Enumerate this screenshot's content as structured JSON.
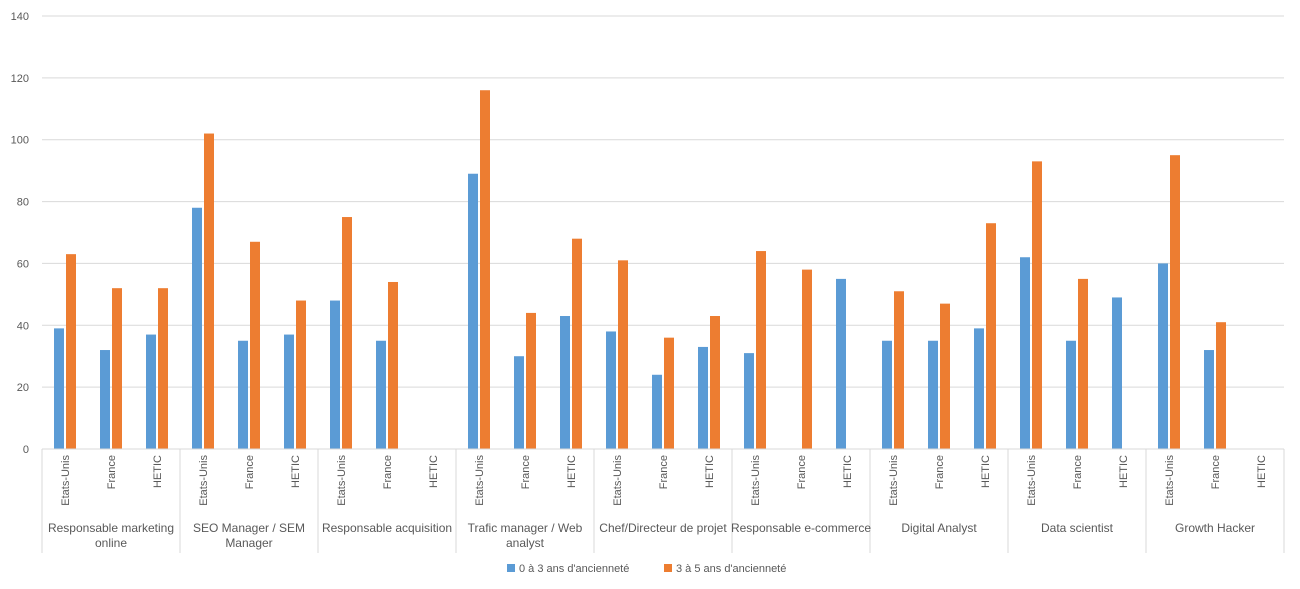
{
  "chart_data": {
    "type": "bar",
    "ylim": [
      0,
      140
    ],
    "yticks": [
      0,
      20,
      40,
      60,
      80,
      100,
      120,
      140
    ],
    "grid": true,
    "legend_position": "bottom",
    "groups": [
      {
        "label": [
          "Responsable marketing",
          "online"
        ],
        "categories": [
          "Etats-Unis",
          "France",
          "HETIC"
        ]
      },
      {
        "label": [
          "SEO Manager / SEM",
          "Manager"
        ],
        "categories": [
          "Etats-Unis",
          "France",
          "HETIC"
        ]
      },
      {
        "label": [
          "Responsable acquisition"
        ],
        "categories": [
          "Etats-Unis",
          "France",
          "HETIC"
        ]
      },
      {
        "label": [
          "Trafic manager / Web",
          "analyst"
        ],
        "categories": [
          "Etats-Unis",
          "France",
          "HETIC"
        ]
      },
      {
        "label": [
          "Chef/Directeur de projet"
        ],
        "categories": [
          "Etats-Unis",
          "France",
          "HETIC"
        ]
      },
      {
        "label": [
          "Responsable e-commerce"
        ],
        "categories": [
          "Etats-Unis",
          "France",
          "HETIC"
        ]
      },
      {
        "label": [
          "Digital Analyst"
        ],
        "categories": [
          "Etats-Unis",
          "France",
          "HETIC"
        ]
      },
      {
        "label": [
          "Data scientist"
        ],
        "categories": [
          "Etats-Unis",
          "France",
          "HETIC"
        ]
      },
      {
        "label": [
          "Growth Hacker"
        ],
        "categories": [
          "Etats-Unis",
          "France",
          "HETIC"
        ]
      }
    ],
    "series": [
      {
        "name": "0 à 3 ans d'ancienneté",
        "color": "#5b9bd5",
        "values": [
          39,
          32,
          37,
          78,
          35,
          37,
          48,
          35,
          null,
          89,
          30,
          43,
          38,
          24,
          33,
          31,
          null,
          55,
          35,
          35,
          39,
          62,
          35,
          49,
          60,
          32,
          null
        ]
      },
      {
        "name": "3 à 5 ans d'ancienneté",
        "color": "#ed7d31",
        "values": [
          63,
          52,
          52,
          102,
          67,
          48,
          75,
          54,
          null,
          116,
          44,
          68,
          61,
          36,
          43,
          64,
          58,
          null,
          51,
          47,
          73,
          93,
          55,
          null,
          95,
          41,
          null
        ]
      }
    ]
  }
}
